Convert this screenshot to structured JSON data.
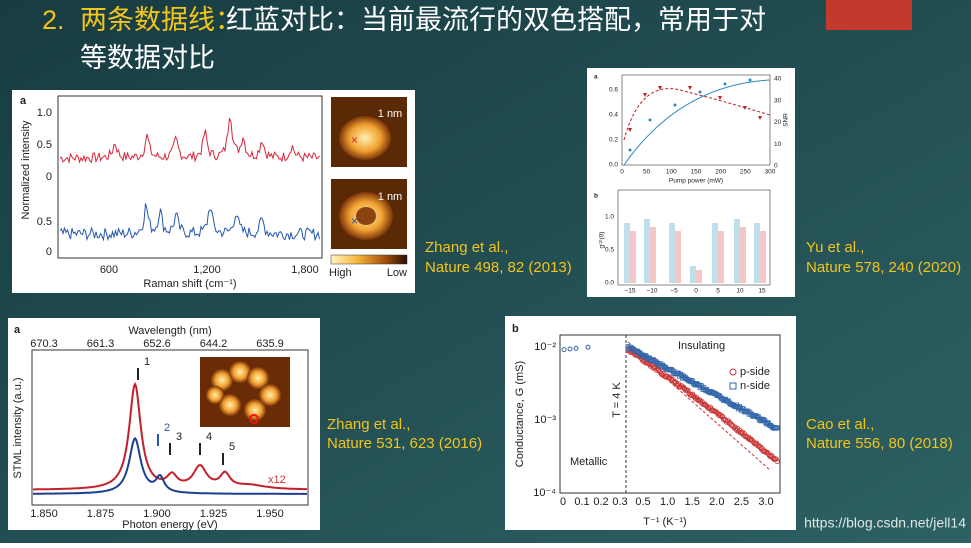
{
  "title": {
    "number": "2.",
    "highlight": "两条数据线：",
    "line1": "红蓝对比：当前最流行的双色搭配，常用于对",
    "line2": "等数据对比"
  },
  "figures": [
    {
      "label": "a",
      "y_label": "Normalized intensity",
      "y_ticks_top": [
        "1.0",
        "0.5",
        "0"
      ],
      "y_ticks_bottom": [
        "0.5",
        "0"
      ],
      "x_ticks": [
        "600",
        "1,200",
        "1,800"
      ],
      "x_label": "Raman shift (cm⁻¹)",
      "scale_bars": [
        "1 nm",
        "1 nm"
      ],
      "colorbar_high": "High",
      "colorbar_low": "Low",
      "citation": [
        "Zhang et al.,",
        "Nature 498, 82 (2013)"
      ]
    },
    {
      "label_a": "a",
      "left_ticks": [
        "0.6",
        "0.4",
        "0.2",
        "0.0"
      ],
      "right_ticks": [
        "40",
        "30",
        "20",
        "10",
        "0"
      ],
      "x_ticks": [
        "0",
        "50",
        "100",
        "150",
        "200",
        "250",
        "300"
      ],
      "x_label": "Pump power (mW)",
      "right_label": "SNR",
      "label_b": "b",
      "b_y_ticks": [
        "1.0",
        "0.5",
        "0.0"
      ],
      "b_x_ticks": [
        "−15",
        "−10",
        "−5",
        "0",
        "5",
        "10",
        "15"
      ],
      "b_y_label": "g⁽²⁾(0)",
      "citation": [
        "Yu et al.,",
        "Nature 578, 240 (2020)"
      ]
    },
    {
      "label": "a",
      "top_label": "Wavelength (nm)",
      "top_ticks": [
        "670.3",
        "661.3",
        "652.6",
        "644.2",
        "635.9"
      ],
      "x_ticks": [
        "1.850",
        "1.875",
        "1.900",
        "1.925",
        "1.950"
      ],
      "x_label": "Photon energy (eV)",
      "y_label": "STML intensity (a.u.)",
      "peaks": [
        "1",
        "2",
        "3",
        "4",
        "5"
      ],
      "scale_note": "x12",
      "citation": [
        "Zhang et al.,",
        "Nature 531, 623 (2016)"
      ]
    },
    {
      "label": "b",
      "y_ticks": [
        "10⁻²",
        "10⁻³",
        "10⁻⁴"
      ],
      "x_ticks_left": [
        "0",
        "0.1",
        "0.2",
        "0.3"
      ],
      "x_ticks_right": [
        "0.5",
        "1.0",
        "1.5",
        "2.0",
        "2.5",
        "3.0"
      ],
      "x_label": "T⁻¹ (K⁻¹)",
      "y_label": "Conductance, G (mS)",
      "temp_note": "T = 4 K",
      "metallic": "Metallic",
      "insulating": "Insulating",
      "legend": [
        "p-side",
        "n-side"
      ],
      "citation": [
        "Cao et al.,",
        "Nature 556, 80 (2018)"
      ]
    }
  ],
  "watermark": "https://blog.csdn.net/jell14"
}
